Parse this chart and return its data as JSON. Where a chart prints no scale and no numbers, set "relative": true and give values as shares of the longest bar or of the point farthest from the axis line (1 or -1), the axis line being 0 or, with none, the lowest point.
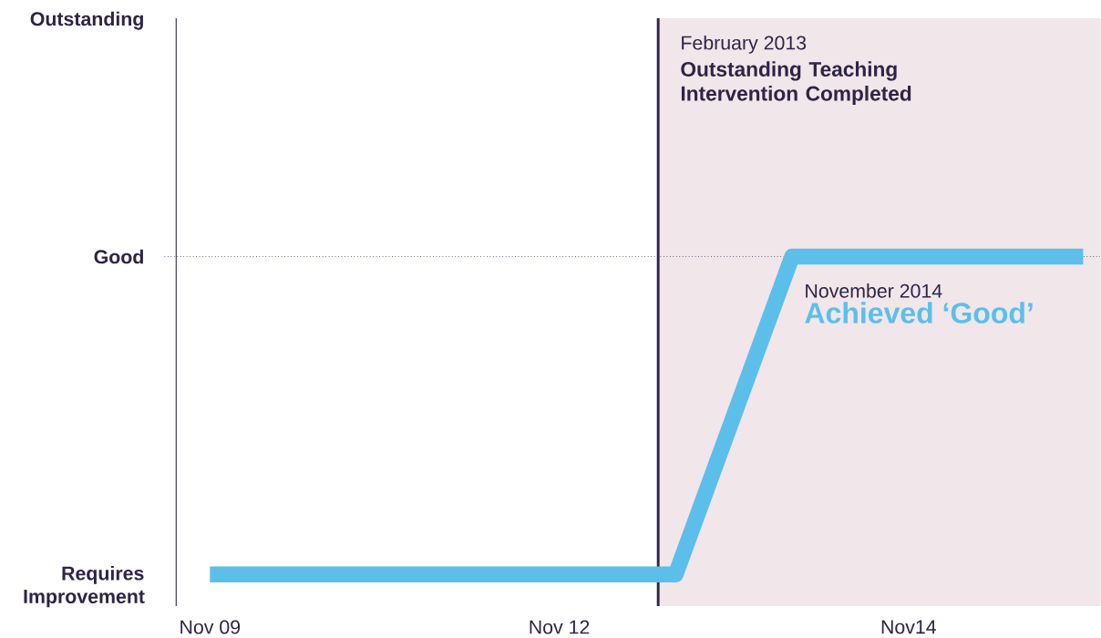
{
  "chart_data": {
    "type": "line",
    "relative": true,
    "categories": [
      "Nov 09",
      null,
      null,
      null,
      null,
      null,
      "Nov 12",
      null,
      null,
      null,
      null,
      null,
      "Nov14",
      null,
      null,
      null
    ],
    "series": [
      {
        "color": "#5bbfea",
        "values": [
          0,
          0,
          0,
          0,
          0,
          0,
          0,
          0,
          0,
          0.5,
          1,
          1,
          1,
          1,
          1,
          1
        ]
      }
    ],
    "ref_lines": [
      {
        "axis": "y",
        "value": 1,
        "color": "#2e2444",
        "line_style": "dotted"
      }
    ],
    "annotations": [
      "Requires Improvement",
      "Good",
      "Outstanding",
      "February 2013",
      "Outstanding Teaching Intervention Completed",
      "November 2014",
      "Achieved ‘Good’"
    ],
    "marker": "none",
    "line_style": "solid"
  }
}
